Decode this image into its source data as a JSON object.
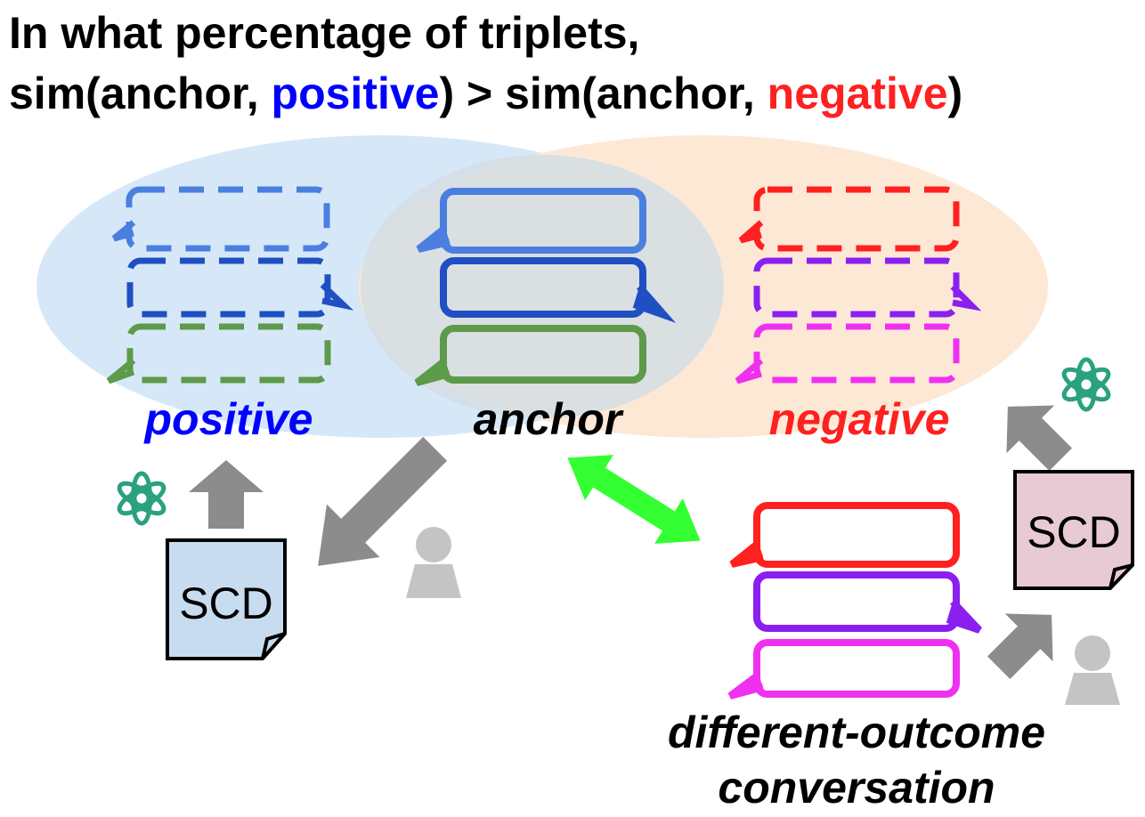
{
  "title": {
    "line1": "In what percentage of triplets,",
    "line2_a": "sim(anchor, ",
    "line2_positive": "positive",
    "line2_b": ") > sim(anchor, ",
    "line2_negative": "negative",
    "line2_c": ")"
  },
  "labels": {
    "positive": "positive",
    "anchor": "anchor",
    "negative": "negative",
    "different_outcome_line1": "different-outcome",
    "different_outcome_line2": "conversation"
  },
  "documents": {
    "left": "SCD",
    "right": "SCD"
  },
  "colors": {
    "positive_text": "#0000ff",
    "negative_text": "#ff2020",
    "bubble_light_blue": "#4a7fe0",
    "bubble_dark_blue": "#1f4fc2",
    "bubble_green": "#5d9a4a",
    "bubble_red": "#ff2020",
    "bubble_purple": "#8a1ff0",
    "bubble_magenta": "#f030f0",
    "ellipse_blue": "#d6e8f8",
    "ellipse_orange": "#fde8d6",
    "arrow_gray": "#8c8c8c",
    "arrow_green": "#33ff33",
    "doc_left_fill": "#c8dcf0",
    "doc_right_fill": "#e8cad4",
    "person_gray": "#c4c4c4",
    "logo_green": "#2aa17f"
  },
  "icons": {
    "llm_logo": "openai-logo-icon",
    "person": "person-icon"
  }
}
